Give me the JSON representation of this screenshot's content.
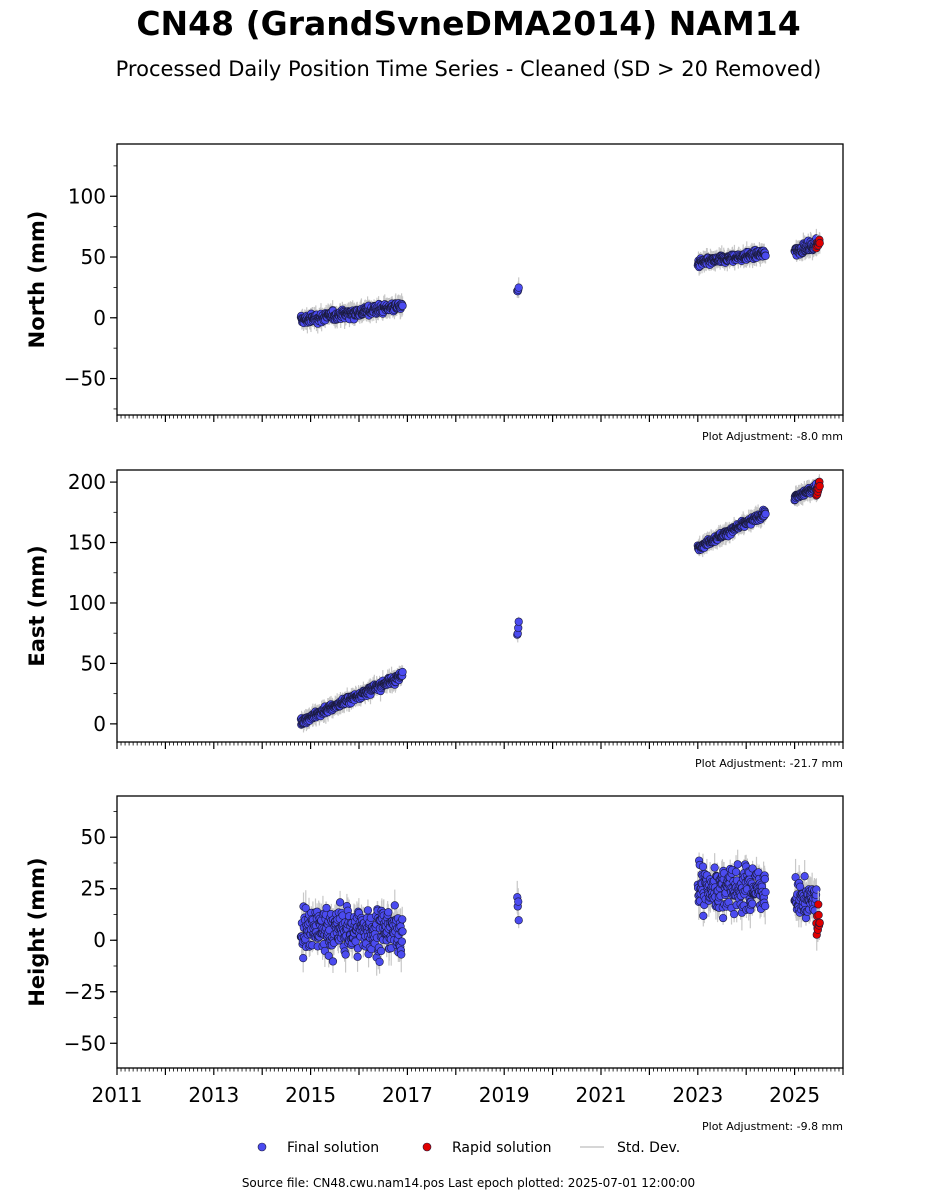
{
  "title": "CN48 (GrandSvneDMA2014) NAM14",
  "subtitle": "Processed Daily Position Time Series - Cleaned (SD > 20 Removed)",
  "source_line": "Source file: CN48.cwu.nam14.pos  Last epoch plotted: 2025-07-01 12:00:00",
  "legend": [
    {
      "label": "Final solution",
      "color": "#4b4bf0",
      "marker": "circle"
    },
    {
      "label": "Rapid solution",
      "color": "#e00000",
      "marker": "circle"
    },
    {
      "label": "Std. Dev.",
      "color": "#c8c8c8",
      "marker": "line"
    }
  ],
  "chart_data": [
    {
      "type": "scatter",
      "ylabel": "North (mm)",
      "xlim": [
        2011,
        2026
      ],
      "ylim": [
        -80,
        143
      ],
      "yticks": [
        -50,
        0,
        50,
        100
      ],
      "adjustment": "Plot Adjustment: -8.0 mm",
      "series": [
        {
          "name": "Final solution",
          "segments": [
            {
              "x": [
                2014.8,
                2016.9
              ],
              "y": [
                -2,
                10
              ],
              "spread": 6
            },
            {
              "x": [
                2019.27,
                2019.3
              ],
              "y": [
                20,
                24
              ],
              "spread": 5
            },
            {
              "x": [
                2023.0,
                2024.4
              ],
              "y": [
                45,
                53
              ],
              "spread": 5
            },
            {
              "x": [
                2025.0,
                2025.45
              ],
              "y": [
                55,
                60
              ],
              "spread": 6
            }
          ]
        },
        {
          "name": "Rapid solution",
          "segments": [
            {
              "x": [
                2025.45,
                2025.52
              ],
              "y": [
                59,
                63
              ],
              "spread": 4
            }
          ]
        }
      ]
    },
    {
      "type": "scatter",
      "ylabel": "East (mm)",
      "xlim": [
        2011,
        2026
      ],
      "ylim": [
        -15,
        210
      ],
      "yticks": [
        0,
        50,
        100,
        150,
        200
      ],
      "adjustment": "Plot Adjustment: -21.7 mm",
      "series": [
        {
          "name": "Final solution",
          "segments": [
            {
              "x": [
                2014.8,
                2016.9
              ],
              "y": [
                2,
                40
              ],
              "spread": 5
            },
            {
              "x": [
                2019.27,
                2019.3
              ],
              "y": [
                75,
                82
              ],
              "spread": 6
            },
            {
              "x": [
                2023.0,
                2024.4
              ],
              "y": [
                146,
                174
              ],
              "spread": 4
            },
            {
              "x": [
                2025.0,
                2025.45
              ],
              "y": [
                187,
                196
              ],
              "spread": 4
            }
          ]
        },
        {
          "name": "Rapid solution",
          "segments": [
            {
              "x": [
                2025.45,
                2025.52
              ],
              "y": [
                190,
                200
              ],
              "spread": 6
            }
          ]
        }
      ]
    },
    {
      "type": "scatter",
      "ylabel": "Height (mm)",
      "xlim": [
        2011,
        2026
      ],
      "ylim": [
        -62,
        70
      ],
      "yticks": [
        -50,
        -25,
        0,
        25,
        50
      ],
      "xticks": [
        2011,
        2013,
        2015,
        2017,
        2019,
        2021,
        2023,
        2025
      ],
      "adjustment": "Plot Adjustment: -9.8 mm",
      "series": [
        {
          "name": "Final solution",
          "segments": [
            {
              "x": [
                2014.8,
                2016.9
              ],
              "y": [
                5,
                5
              ],
              "spread": 18
            },
            {
              "x": [
                2019.27,
                2019.3
              ],
              "y": [
                15,
                15
              ],
              "spread": 10
            },
            {
              "x": [
                2023.0,
                2024.4
              ],
              "y": [
                25,
                25
              ],
              "spread": 17
            },
            {
              "x": [
                2025.0,
                2025.45
              ],
              "y": [
                20,
                20
              ],
              "spread": 13
            }
          ]
        },
        {
          "name": "Rapid solution",
          "segments": [
            {
              "x": [
                2025.45,
                2025.52
              ],
              "y": [
                8,
                8
              ],
              "spread": 13
            }
          ]
        }
      ]
    }
  ]
}
